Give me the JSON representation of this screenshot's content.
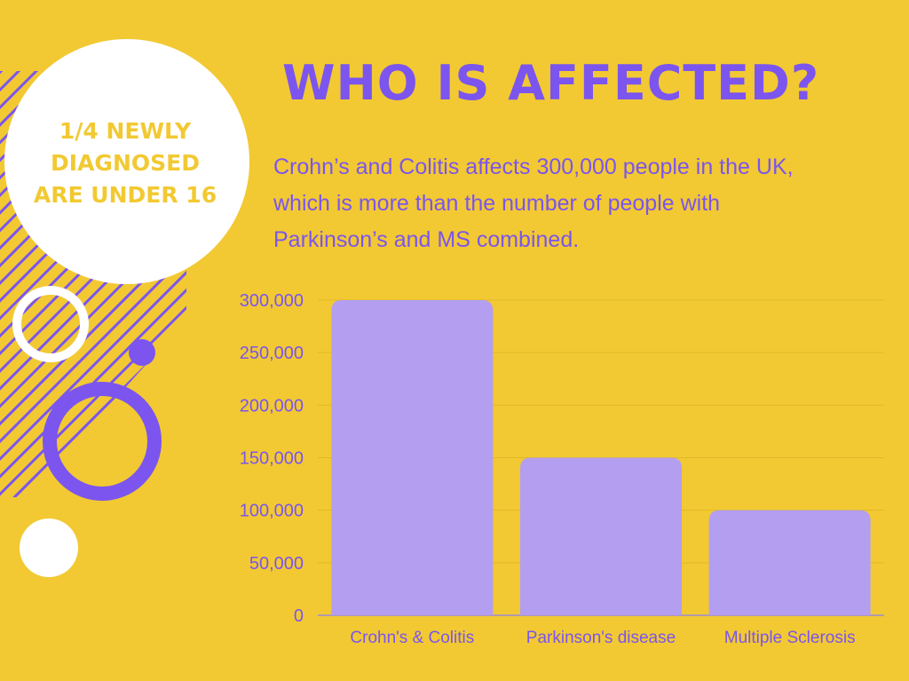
{
  "heading": {
    "title": "WHO IS AFFECTED?"
  },
  "intro": {
    "line1": "Crohn’s and Colitis affects 300,000 people in the UK,",
    "line2": "which is more than the number of people with",
    "line3": "Parkinson’s and MS combined."
  },
  "badge": {
    "line1": "1/4 NEWLY",
    "line2": "DIAGNOSED",
    "line3": "ARE UNDER 16"
  },
  "colors": {
    "background": "#f2c932",
    "accent": "#7b55ee",
    "bar": "#b39ef0",
    "white": "#ffffff"
  },
  "chart_data": {
    "type": "bar",
    "categories": [
      "Crohn's & Colitis",
      "Parkinson's disease",
      "Multiple Sclerosis"
    ],
    "values": [
      300000,
      150000,
      100000
    ],
    "ylim": [
      0,
      300000
    ],
    "yticks": [
      0,
      50000,
      100000,
      150000,
      200000,
      250000,
      300000
    ],
    "ytick_labels": [
      "0",
      "50,000",
      "100,000",
      "150,000",
      "200,000",
      "250,000",
      "300,000"
    ],
    "grid": true,
    "legend": "none"
  }
}
